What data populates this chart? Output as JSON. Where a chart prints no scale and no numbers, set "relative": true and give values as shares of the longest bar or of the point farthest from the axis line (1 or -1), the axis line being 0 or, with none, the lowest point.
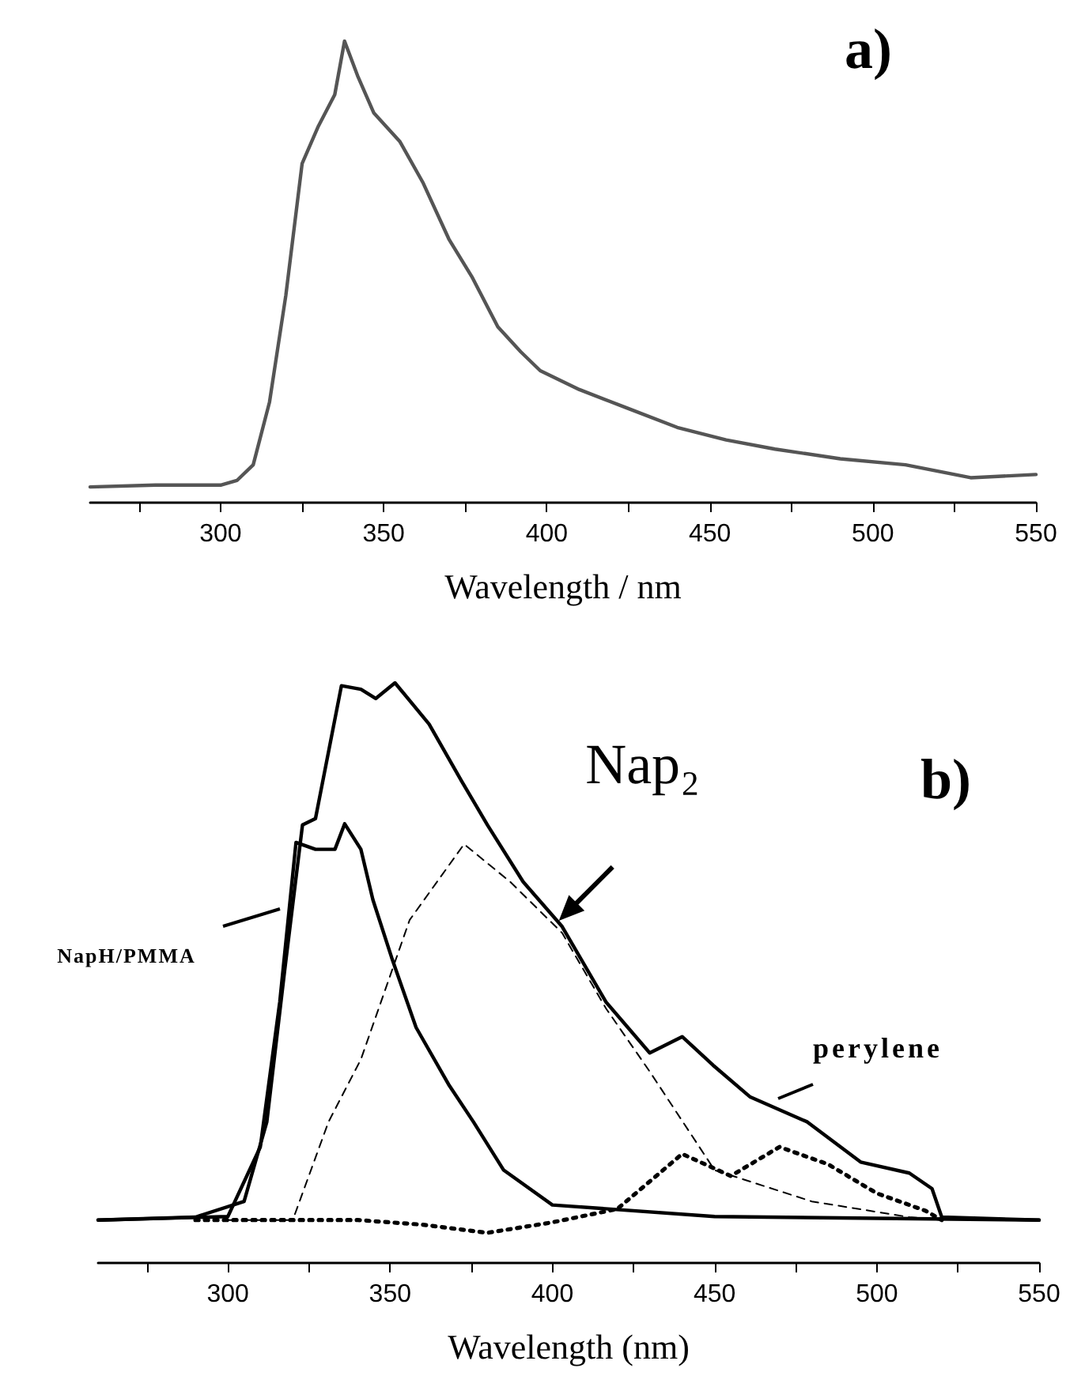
{
  "chart_data": [
    {
      "type": "line",
      "title": "a)",
      "xlabel": "Wavelength / nm",
      "relative": true,
      "grid": false,
      "marker": "none",
      "xlim": [
        260,
        550
      ],
      "xticks": [
        {
          "value": 275,
          "label": null
        },
        300,
        {
          "value": 325,
          "label": null
        },
        350,
        {
          "value": 375,
          "label": null
        },
        400,
        {
          "value": 425,
          "label": null
        },
        450,
        {
          "value": 475,
          "label": null
        },
        500,
        {
          "value": 525,
          "label": null
        },
        550
      ],
      "series": [
        {
          "color": "#555555",
          "line_style": "solid",
          "x": [
            260,
            280,
            300,
            305,
            310,
            315,
            320,
            325,
            330,
            335,
            338,
            342,
            347,
            355,
            362,
            370,
            377,
            385,
            392,
            398,
            410,
            425,
            440,
            455,
            470,
            490,
            510,
            530,
            550
          ],
          "values": [
            0.034,
            0.038,
            0.038,
            0.048,
            0.082,
            0.218,
            0.449,
            0.735,
            0.816,
            0.884,
            1,
            0.925,
            0.844,
            0.782,
            0.694,
            0.571,
            0.49,
            0.381,
            0.327,
            0.286,
            0.245,
            0.204,
            0.163,
            0.136,
            0.116,
            0.095,
            0.082,
            0.054,
            0.061
          ]
        }
      ]
    },
    {
      "type": "line",
      "title": "b)",
      "xlabel": "Wavelength (nm)",
      "relative": true,
      "grid": false,
      "marker": "none",
      "xlim": [
        260,
        550
      ],
      "xticks": [
        {
          "value": 275,
          "label": null
        },
        300,
        {
          "value": 325,
          "label": null
        },
        350,
        {
          "value": 375,
          "label": null
        },
        400,
        {
          "value": 425,
          "label": null
        },
        450,
        {
          "value": 475,
          "label": null
        },
        500,
        {
          "value": 525,
          "label": null
        },
        550
      ],
      "annotations": [
        {
          "text": "Nap₂",
          "x": 402,
          "y": 0.59
        },
        "NapH/PMMA",
        "perylene"
      ],
      "series": [
        {
          "color": "#000000",
          "line_style": "solid",
          "x": [
            260,
            290,
            305,
            312,
            317.5,
            323,
            327,
            335,
            341,
            345.6,
            351.5,
            362,
            372,
            380,
            391,
            403,
            416.5,
            430,
            440,
            449.5,
            461,
            478.6,
            495,
            510,
            517,
            520,
            550
          ],
          "values": [
            0.074,
            0.079,
            0.106,
            0.243,
            0.504,
            0.755,
            0.766,
            0.995,
            0.989,
            0.973,
            1,
            0.929,
            0.831,
            0.755,
            0.657,
            0.58,
            0.45,
            0.362,
            0.39,
            0.341,
            0.286,
            0.243,
            0.174,
            0.155,
            0.128,
            0.079,
            0.074
          ]
        },
        {
          "color": "#000000",
          "line_style": "solid",
          "x": [
            260,
            300,
            310,
            316,
            321,
            327,
            333,
            336,
            341,
            344.7,
            350.5,
            358,
            368,
            375.7,
            385,
            400,
            450,
            550
          ],
          "values": [
            0.074,
            0.08,
            0.2,
            0.45,
            0.725,
            0.713,
            0.713,
            0.757,
            0.713,
            0.626,
            0.526,
            0.406,
            0.308,
            0.243,
            0.16,
            0.1,
            0.08,
            0.074
          ]
        },
        {
          "color": "#000000",
          "line_style": "dashed",
          "x": [
            300,
            320,
            331,
            341,
            356,
            372.8,
            387,
            403,
            416.5,
            430,
            450,
            480,
            510,
            520
          ],
          "values": [
            0.074,
            0.074,
            0.243,
            0.351,
            0.591,
            0.722,
            0.657,
            0.569,
            0.439,
            0.33,
            0.16,
            0.106,
            0.079,
            0.074
          ]
        },
        {
          "color": "#000000",
          "line_style": "dotted",
          "x": [
            290,
            340,
            360,
            380,
            400,
            420,
            440,
            455,
            470,
            485,
            500,
            515,
            520
          ],
          "values": [
            0.074,
            0.074,
            0.066,
            0.052,
            0.07,
            0.093,
            0.188,
            0.15,
            0.2,
            0.17,
            0.12,
            0.09,
            0.074
          ]
        }
      ]
    }
  ]
}
